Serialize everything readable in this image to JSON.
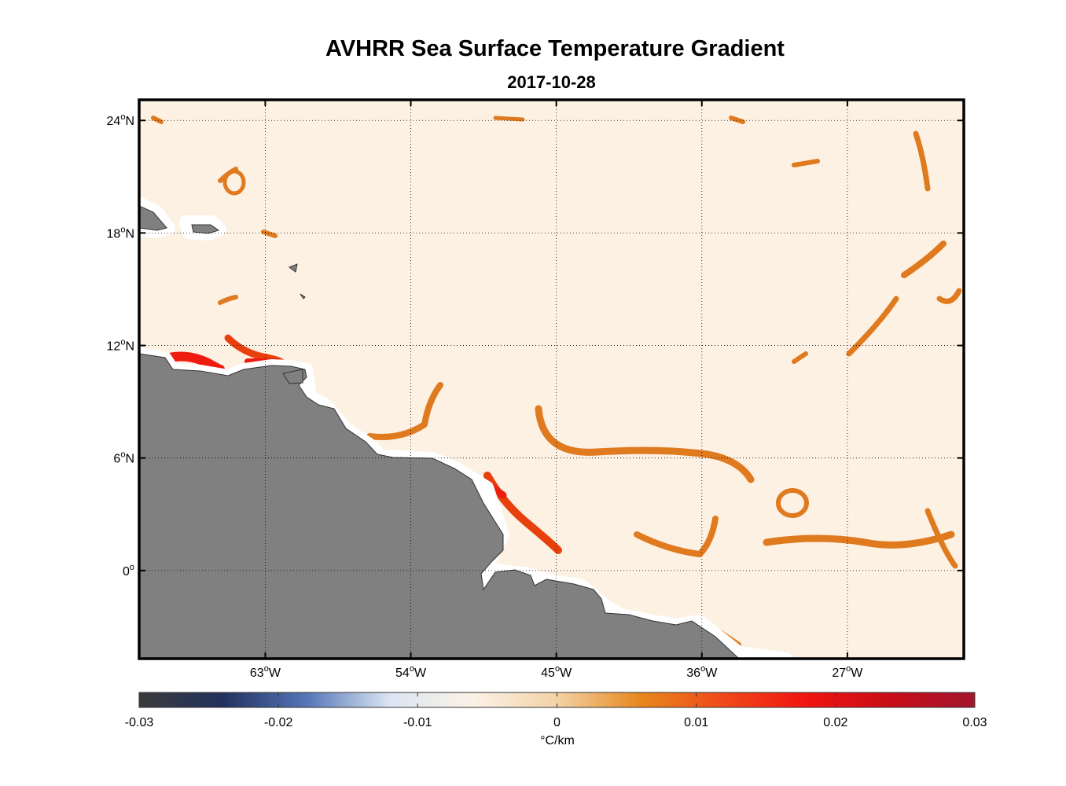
{
  "title": "AVHRR Sea Surface Temperature Gradient",
  "subtitle": "2017-10-28",
  "map": {
    "lon_range": [
      -70.8,
      -19.8
    ],
    "lat_range": [
      -4.7,
      25.1
    ],
    "lat_ticks": [
      {
        "value": 24,
        "deg": "24",
        "hemi": "N"
      },
      {
        "value": 18,
        "deg": "18",
        "hemi": "N"
      },
      {
        "value": 12,
        "deg": "12",
        "hemi": "N"
      },
      {
        "value": 6,
        "deg": "6",
        "hemi": "N"
      },
      {
        "value": 0,
        "deg": "0",
        "hemi": ""
      }
    ],
    "lon_ticks": [
      {
        "value": -63,
        "deg": "63",
        "hemi": "W"
      },
      {
        "value": -54,
        "deg": "54",
        "hemi": "W"
      },
      {
        "value": -45,
        "deg": "45",
        "hemi": "W"
      },
      {
        "value": -36,
        "deg": "36",
        "hemi": "W"
      },
      {
        "value": -27,
        "deg": "27",
        "hemi": "W"
      }
    ],
    "colors": {
      "background": "#fdf1e4",
      "land": "#808080",
      "coast_buffer": "#ffffff",
      "gradient_medium": "#e07a1f",
      "gradient_strong": "#e8400c",
      "gradient_max": "#ee1c0e"
    }
  },
  "colorbar": {
    "ticks": [
      "-0.03",
      "-0.02",
      "-0.01",
      "0",
      "0.01",
      "0.02",
      "0.03"
    ],
    "unit": "°C/km",
    "stops": [
      "#3b3b3b",
      "#22325e",
      "#5575b8",
      "#dbe6f2",
      "#fbf2e6",
      "#f3d2a6",
      "#e8871c",
      "#f0481a",
      "#f01410",
      "#c80d18",
      "#a3152f"
    ]
  }
}
